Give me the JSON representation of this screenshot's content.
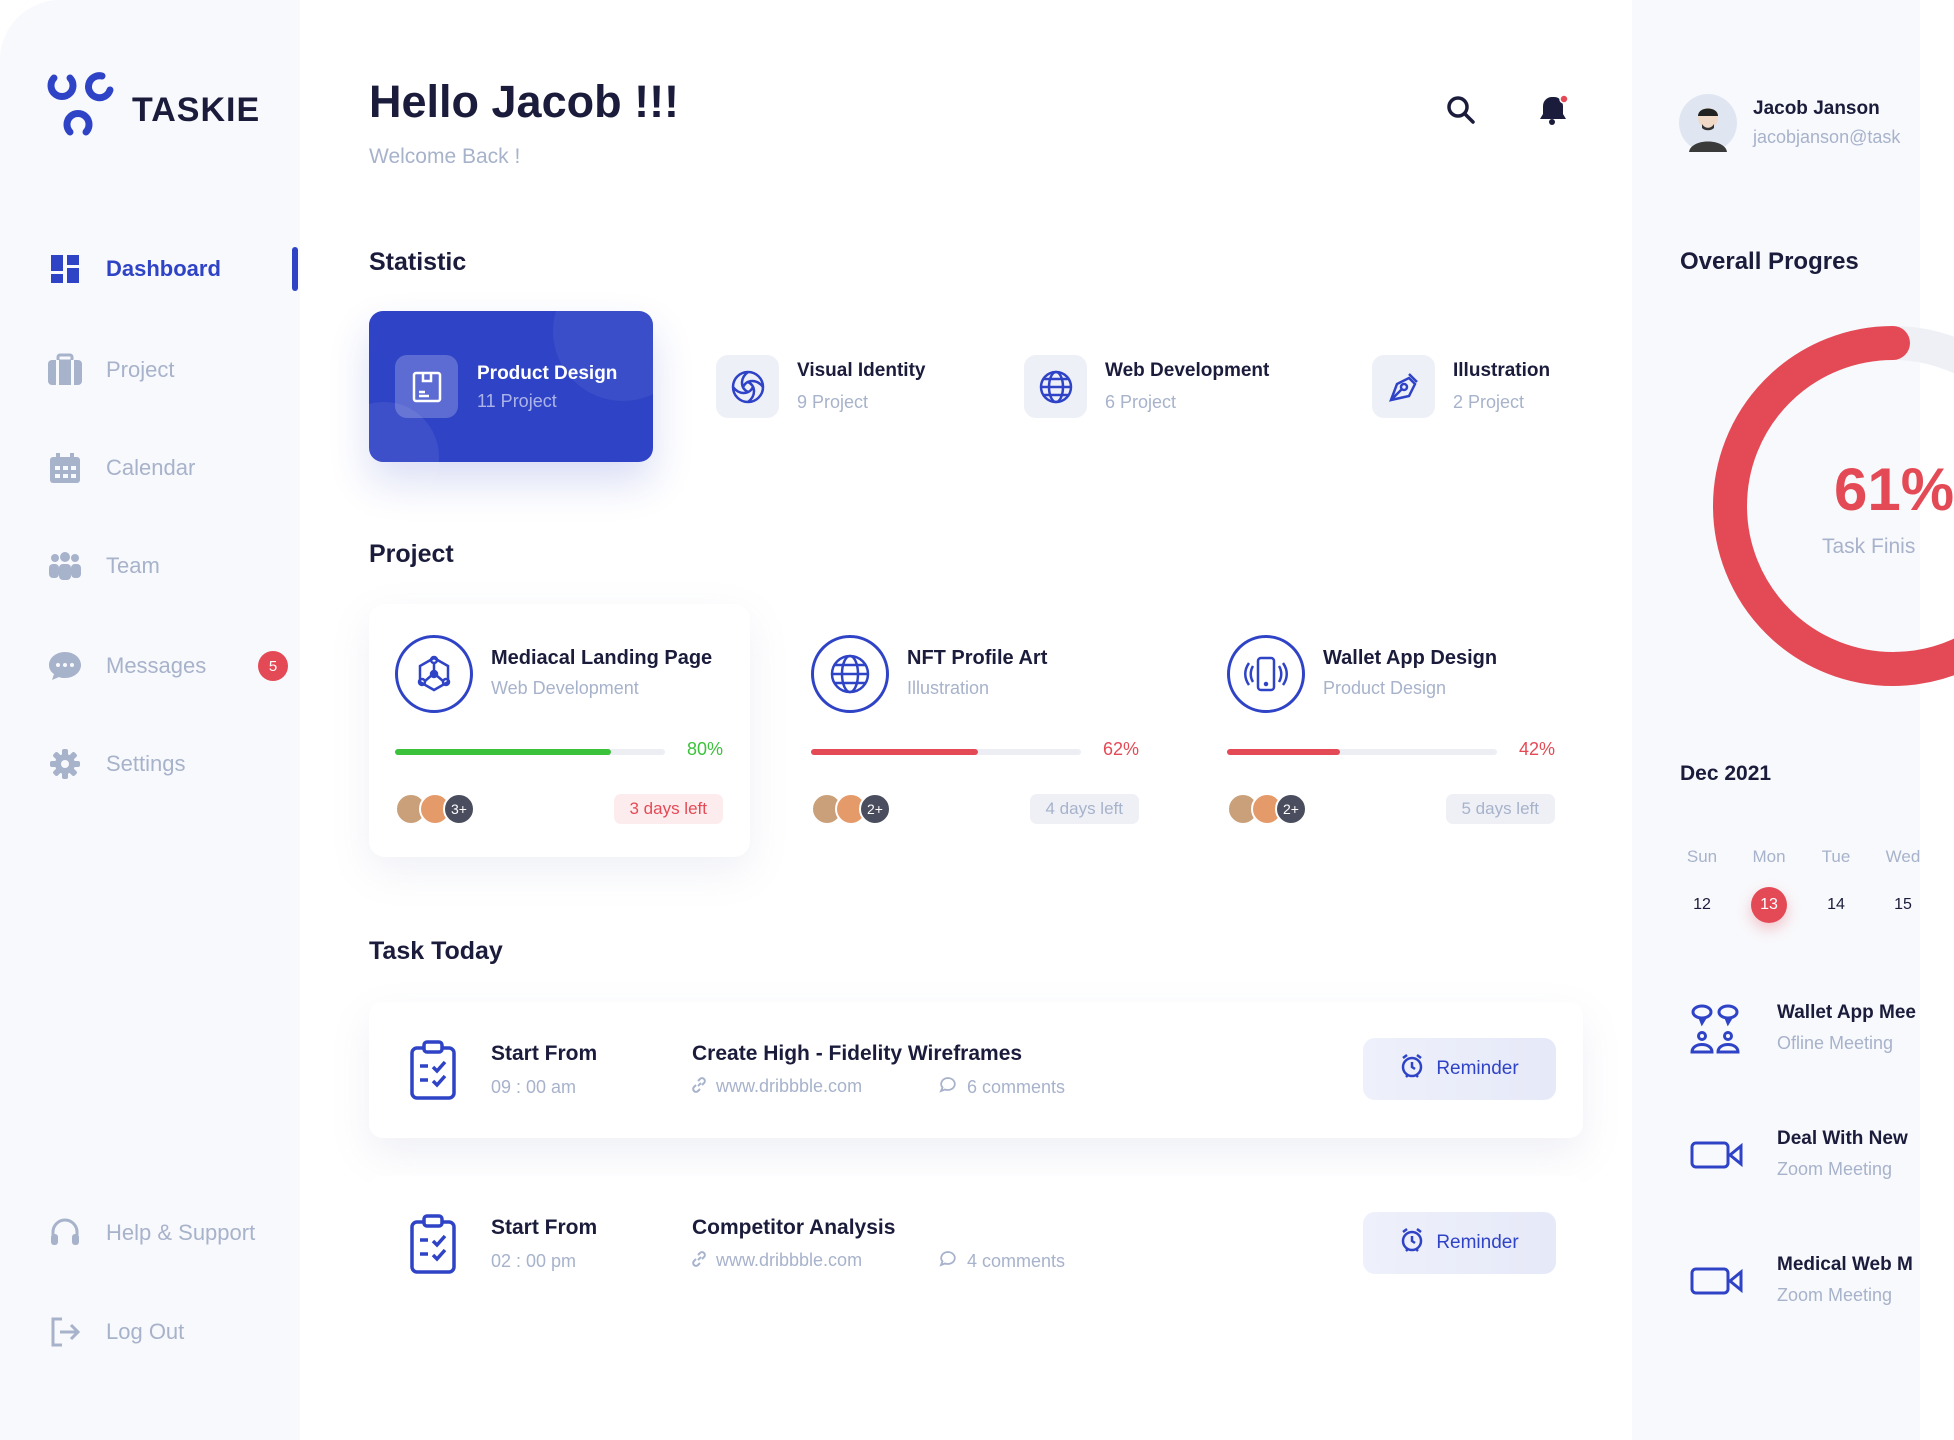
{
  "app": {
    "name": "TASKIE"
  },
  "sidebar": {
    "items": [
      {
        "label": "Dashboard",
        "icon": "grid-icon",
        "active": true
      },
      {
        "label": "Project",
        "icon": "briefcase-icon"
      },
      {
        "label": "Calendar",
        "icon": "calendar-icon"
      },
      {
        "label": "Team",
        "icon": "team-icon"
      },
      {
        "label": "Messages",
        "icon": "chat-icon",
        "badge": "5"
      },
      {
        "label": "Settings",
        "icon": "gear-icon"
      }
    ],
    "bottom": [
      {
        "label": "Help & Support",
        "icon": "headset-icon"
      },
      {
        "label": "Log Out",
        "icon": "logout-icon"
      }
    ]
  },
  "header": {
    "title": "Hello Jacob !!!",
    "subtitle": "Welcome Back !"
  },
  "user": {
    "name": "Jacob Janson",
    "email": "jacobjanson@task"
  },
  "statistic": {
    "title": "Statistic",
    "items": [
      {
        "title": "Product Design",
        "count": "11 Project",
        "icon": "box-icon",
        "active": true
      },
      {
        "title": "Visual Identity",
        "count": "9 Project",
        "icon": "spiral-icon"
      },
      {
        "title": "Web Development",
        "count": "6 Project",
        "icon": "globe-icon"
      },
      {
        "title": "Illustration",
        "count": "2 Project",
        "icon": "pen-tool-icon"
      }
    ]
  },
  "projects": {
    "title": "Project",
    "items": [
      {
        "title": "Mediacal Landing Page",
        "category": "Web Development",
        "progress": 80,
        "progress_label": "80%",
        "extra_members": "3+",
        "due": "3 days left",
        "color": "#3cc13b",
        "due_urgent": true,
        "icon": "network-icon"
      },
      {
        "title": "NFT Profile Art",
        "category": "Illustration",
        "progress": 62,
        "progress_label": "62%",
        "extra_members": "2+",
        "due": "4 days left",
        "color": "#e44a55",
        "icon": "globe-icon"
      },
      {
        "title": "Wallet App Design",
        "category": "Product Design",
        "progress": 42,
        "progress_label": "42%",
        "extra_members": "2+",
        "due": "5 days left",
        "color": "#e44a55",
        "icon": "phone-vibrate-icon"
      }
    ]
  },
  "tasks": {
    "title": "Task Today",
    "items": [
      {
        "start_label": "Start From",
        "time": "09 : 00 am",
        "title": "Create High - Fidelity Wireframes",
        "link": "www.dribbble.com",
        "comments": "6 comments",
        "button": "Reminder"
      },
      {
        "start_label": "Start From",
        "time": "02 : 00 pm",
        "title": "Competitor Analysis",
        "link": "www.dribbble.com",
        "comments": "4 comments",
        "button": "Reminder"
      }
    ]
  },
  "overall": {
    "title": "Overall Progres",
    "value": 61,
    "value_label": "61%",
    "caption": "Task Finis",
    "color": "#e44a55"
  },
  "calendar": {
    "month": "Dec 2021",
    "days": [
      {
        "day": "Sun",
        "date": "12"
      },
      {
        "day": "Mon",
        "date": "13",
        "selected": true
      },
      {
        "day": "Tue",
        "date": "14"
      },
      {
        "day": "Wed",
        "date": "15"
      }
    ]
  },
  "events": [
    {
      "title": "Wallet App Mee",
      "sub": "Ofline Meeting",
      "icon": "meeting-people-icon"
    },
    {
      "title": "Deal With New",
      "sub": "Zoom Meeting",
      "icon": "video-camera-icon"
    },
    {
      "title": "Medical Web M",
      "sub": "Zoom Meeting",
      "icon": "video-camera-icon"
    }
  ],
  "colors": {
    "primary": "#2f43c6",
    "danger": "#e44a55",
    "success": "#3cc13b",
    "muted": "#a7b2cb",
    "text": "#1b1c3b"
  }
}
